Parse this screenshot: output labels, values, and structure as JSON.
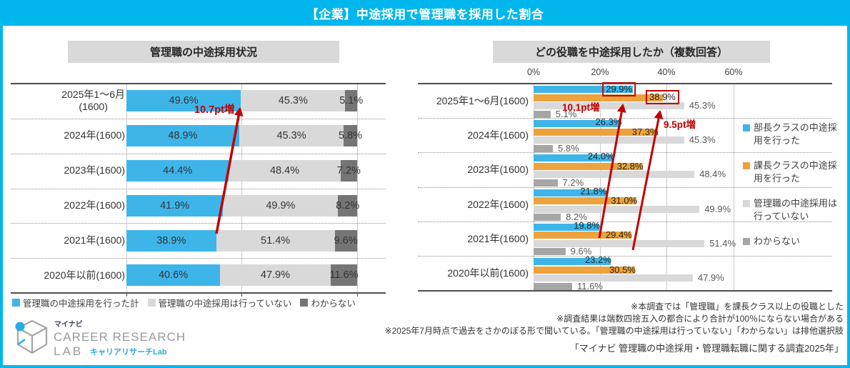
{
  "header": {
    "title": "【企業】中途採用で管理職を採用した割合",
    "bg_color": "#00B6ED"
  },
  "chart_data": [
    {
      "type": "bar",
      "orientation": "horizontal-stacked",
      "title": "管理職の中途採用状況",
      "categories": [
        "2025年1～6月\n(1600)",
        "2024年(1600)",
        "2023年(1600)",
        "2022年(1600)",
        "2021年(1600)",
        "2020年以前(1600)"
      ],
      "series": [
        {
          "name": "管理職の中途採用を行った計",
          "color": "#3EB5E9",
          "values": [
            49.6,
            48.9,
            44.4,
            41.9,
            38.9,
            40.6
          ]
        },
        {
          "name": "管理職の中途採用は行っていない",
          "color": "#D9D9D9",
          "values": [
            45.3,
            45.3,
            48.4,
            49.9,
            51.4,
            47.9
          ]
        },
        {
          "name": "わからない",
          "color": "#757575",
          "values": [
            5.1,
            5.8,
            7.2,
            8.2,
            9.6,
            11.6
          ]
        }
      ],
      "xlim": [
        0,
        100
      ],
      "grid_ticks_percent": [
        0,
        50,
        100
      ],
      "annotation": {
        "text": "10.7pt増",
        "color": "#C00000",
        "from_category": "2021年(1600)",
        "to_category": "2025年1～6月(1600)"
      }
    },
    {
      "type": "bar",
      "orientation": "horizontal-grouped",
      "title": "どの役職を中途採用したか（複数回答）",
      "axis_ticks": [
        "0%",
        "20%",
        "40%",
        "60%"
      ],
      "categories": [
        "2025年1～6月(1600)",
        "2024年(1600)",
        "2023年(1600)",
        "2022年(1600)",
        "2021年(1600)",
        "2020年以前(1600)"
      ],
      "series": [
        {
          "name": "部長クラスの中途採用を行った",
          "color": "#3EB5E9",
          "values": [
            29.9,
            26.3,
            24.0,
            21.8,
            19.8,
            23.2
          ]
        },
        {
          "name": "課長クラスの中途採用を行った",
          "color": "#EDA33D",
          "values": [
            38.9,
            37.3,
            32.8,
            31.0,
            29.4,
            30.5
          ]
        },
        {
          "name": "管理職の中途採用は行っていない",
          "color": "#D9D9D9",
          "values": [
            45.3,
            45.3,
            48.4,
            49.9,
            51.4,
            47.9
          ]
        },
        {
          "name": "わからない",
          "color": "#A6A6A6",
          "values": [
            5.1,
            5.8,
            7.2,
            8.2,
            9.6,
            11.6
          ]
        }
      ],
      "xlim": [
        0,
        65
      ],
      "highlighted_labels": [
        "29.9%",
        "38.9%"
      ],
      "annotations": [
        {
          "text": "10.1pt増",
          "color": "#C00000"
        },
        {
          "text": "9.5pt増",
          "color": "#C00000"
        }
      ]
    }
  ],
  "footnotes": [
    "※本調査では「管理職」を課長クラス以上の役職とした",
    "※調査結果は端数四捨五入の都合により合計が100％にならない場合がある",
    "※2025年7月時点で過去をさかのぼる形で聞いている。「管理職の中途採用は行っていない」「わからない」は排他選択肢"
  ],
  "source": "「マイナビ 管理職の中途採用・管理職転職に関する調査2025年」",
  "logo": {
    "brand": "マイナビ",
    "line1": "CAREER RESEARCH",
    "line2": "LAB",
    "sub": "キャリアリサーチLab"
  }
}
